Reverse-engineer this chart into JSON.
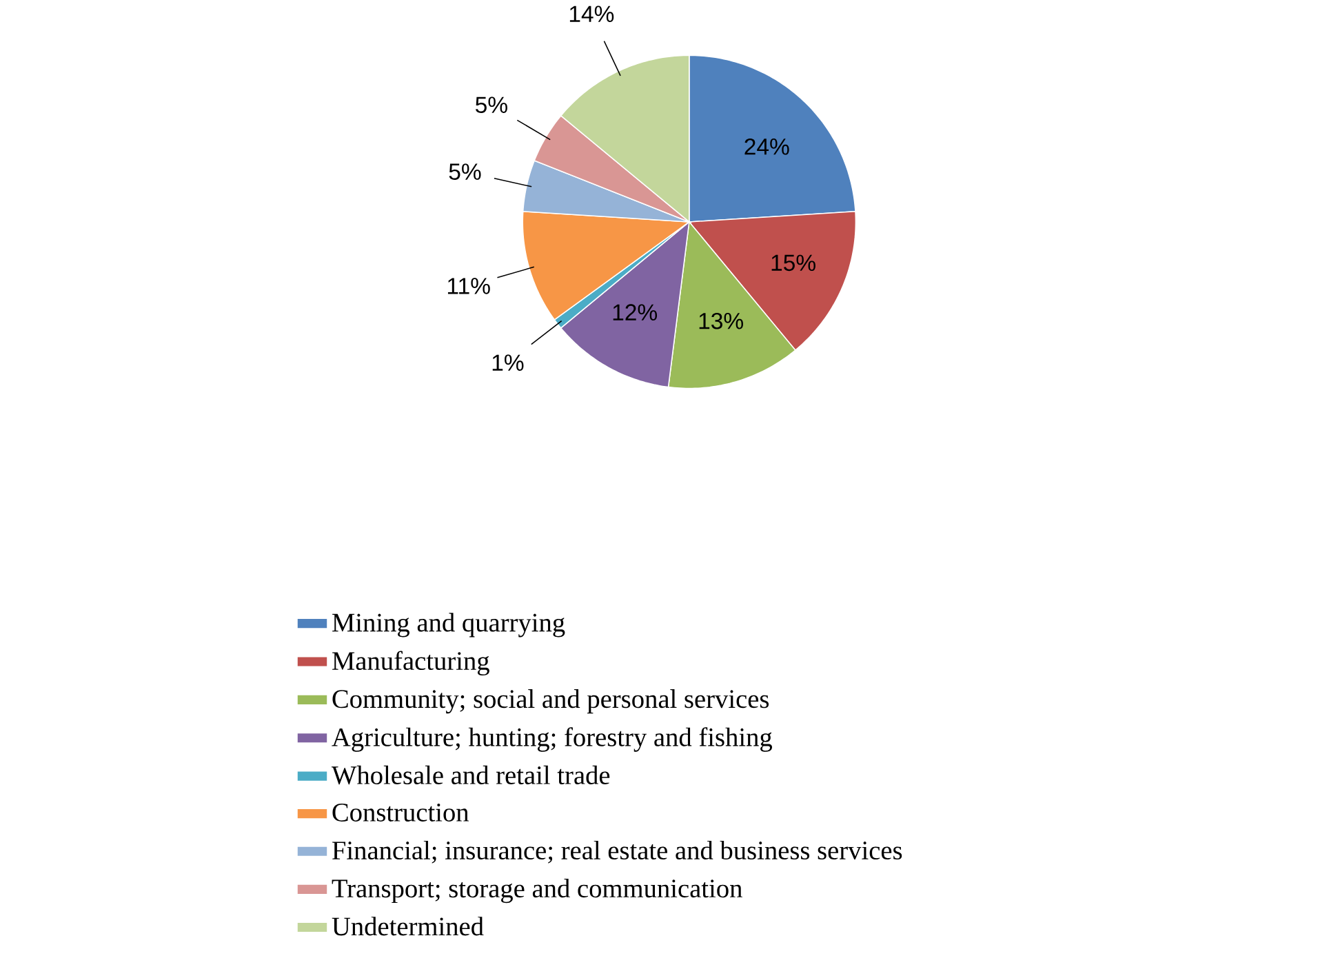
{
  "chart_data": {
    "type": "pie",
    "categories": [
      "Mining and quarrying",
      "Manufacturing",
      "Community; social and personal services",
      "Agriculture; hunting; forestry and fishing",
      "Wholesale and retail trade",
      "Construction",
      "Financial; insurance; real estate and business services",
      "Transport; storage and communication",
      "Undetermined"
    ],
    "values": [
      24,
      15,
      13,
      12,
      1,
      11,
      5,
      5,
      14
    ],
    "value_labels": [
      "24%",
      "15%",
      "13%",
      "12%",
      "1%",
      "11%",
      "5%",
      "5%",
      "14%"
    ],
    "colors": [
      "#4f81bd",
      "#c0504d",
      "#9bbb59",
      "#8064a2",
      "#4bacc6",
      "#f79646",
      "#95b3d7",
      "#d99694",
      "#c3d69b"
    ],
    "legend": "bottom left"
  }
}
